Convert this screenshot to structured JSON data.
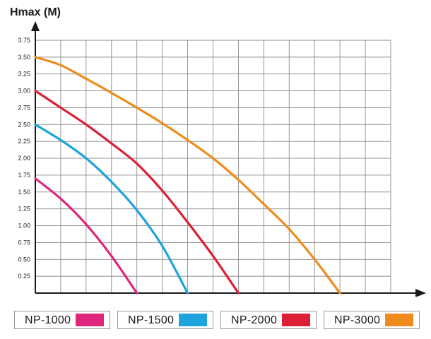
{
  "chart_data": {
    "type": "line",
    "title": "",
    "ylabel": "Hmax (M)",
    "xlabel": "",
    "xlim": [
      0,
      3500
    ],
    "ylim": [
      0,
      3.75
    ],
    "x_ticks": [
      "250",
      "500",
      "750",
      "1000",
      "1250",
      "1500",
      "1750",
      "2000",
      "2250",
      "2500",
      "2750",
      "3000",
      "3250",
      "3500"
    ],
    "y_ticks": [
      "0.25",
      "0.50",
      "0.75",
      "1.00",
      "1.25",
      "1.50",
      "1.75",
      "2.00",
      "2.25",
      "2.50",
      "2.75",
      "3.00",
      "3.25",
      "3.50",
      "3.75"
    ],
    "origin_label": "0",
    "grid": true,
    "legend_position": "bottom",
    "series": [
      {
        "name": "NP-1000",
        "color": "#e0267c",
        "x": [
          0,
          250,
          500,
          750,
          1000
        ],
        "y": [
          1.7,
          1.4,
          1.02,
          0.55,
          0
        ]
      },
      {
        "name": "NP-1500",
        "color": "#1ea3dc",
        "x": [
          0,
          250,
          500,
          750,
          1000,
          1250,
          1500
        ],
        "y": [
          2.5,
          2.27,
          2.0,
          1.65,
          1.23,
          0.7,
          0
        ]
      },
      {
        "name": "NP-2000",
        "color": "#dc1f35",
        "x": [
          0,
          250,
          500,
          750,
          1000,
          1250,
          1500,
          1750,
          2000
        ],
        "y": [
          3.0,
          2.75,
          2.5,
          2.22,
          1.92,
          1.52,
          1.05,
          0.55,
          0
        ]
      },
      {
        "name": "NP-3000",
        "color": "#ef8b1d",
        "x": [
          0,
          250,
          500,
          750,
          1000,
          1250,
          1500,
          1750,
          2000,
          2250,
          2500,
          2750,
          3000
        ],
        "y": [
          3.5,
          3.38,
          3.18,
          2.97,
          2.75,
          2.52,
          2.27,
          2.0,
          1.68,
          1.32,
          0.95,
          0.5,
          0
        ]
      }
    ]
  }
}
